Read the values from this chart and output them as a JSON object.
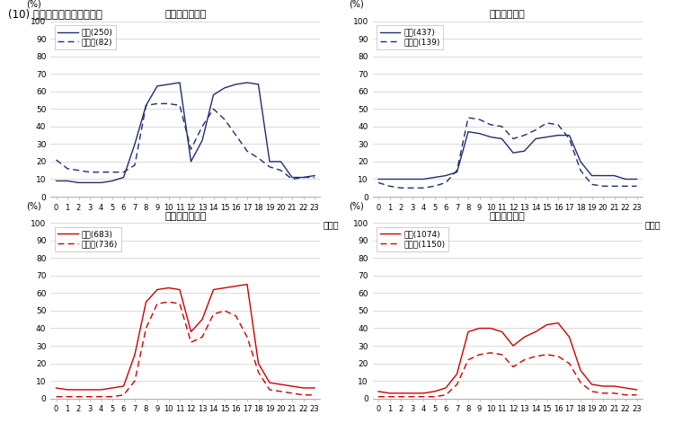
{
  "title": "(10) 介護サービス職業従事者",
  "subplots": [
    {
      "title": "男性（月～金）",
      "legend1": "正規(250)",
      "legend2": "非正規(82)",
      "color": "#1f2d6e",
      "regular": [
        9,
        9,
        8,
        8,
        8,
        9,
        11,
        30,
        52,
        63,
        64,
        65,
        20,
        32,
        58,
        62,
        64,
        65,
        64,
        20,
        20,
        11,
        11,
        12
      ],
      "irregular": [
        21,
        16,
        15,
        14,
        14,
        14,
        14,
        18,
        52,
        53,
        53,
        52,
        27,
        40,
        50,
        44,
        35,
        26,
        22,
        17,
        15,
        10,
        11,
        11
      ]
    },
    {
      "title": "男性（土日）",
      "legend1": "正規(437)",
      "legend2": "非正規(139)",
      "color": "#1f2d6e",
      "regular": [
        10,
        10,
        10,
        10,
        10,
        11,
        12,
        14,
        37,
        36,
        34,
        33,
        25,
        26,
        33,
        34,
        35,
        35,
        20,
        12,
        12,
        12,
        10,
        10
      ],
      "irregular": [
        8,
        6,
        5,
        5,
        5,
        6,
        8,
        15,
        45,
        44,
        41,
        40,
        33,
        35,
        38,
        42,
        41,
        33,
        15,
        7,
        6,
        6,
        6,
        6
      ]
    },
    {
      "title": "女性（月～金）",
      "legend1": "正規(683)",
      "legend2": "非正規(736)",
      "color": "#cc0000",
      "regular": [
        6,
        5,
        5,
        5,
        5,
        6,
        7,
        25,
        55,
        62,
        63,
        62,
        38,
        45,
        62,
        63,
        64,
        65,
        20,
        9,
        8,
        7,
        6,
        6
      ],
      "irregular": [
        1,
        1,
        1,
        1,
        1,
        1,
        2,
        10,
        40,
        54,
        55,
        54,
        32,
        35,
        48,
        50,
        47,
        35,
        15,
        5,
        4,
        3,
        2,
        2
      ]
    },
    {
      "title": "女性（土日）",
      "legend1": "正規(1074)",
      "legend2": "非正規(1150)",
      "color": "#cc0000",
      "regular": [
        4,
        3,
        3,
        3,
        3,
        4,
        6,
        14,
        38,
        40,
        40,
        38,
        30,
        35,
        38,
        42,
        43,
        35,
        16,
        8,
        7,
        7,
        6,
        5
      ],
      "irregular": [
        1,
        1,
        1,
        1,
        1,
        1,
        2,
        8,
        22,
        25,
        26,
        25,
        18,
        22,
        24,
        25,
        24,
        20,
        9,
        4,
        3,
        3,
        2,
        2
      ]
    }
  ],
  "hours": [
    0,
    1,
    2,
    3,
    4,
    5,
    6,
    7,
    8,
    9,
    10,
    11,
    12,
    13,
    14,
    15,
    16,
    17,
    18,
    19,
    20,
    21,
    22,
    23
  ],
  "yticks": [
    0,
    10,
    20,
    30,
    40,
    50,
    60,
    70,
    80,
    90,
    100
  ],
  "ylim": [
    0,
    100
  ],
  "background": "#ffffff",
  "grid_color": "#cccccc",
  "pct_label": "(%)",
  "time_label": "（時）"
}
